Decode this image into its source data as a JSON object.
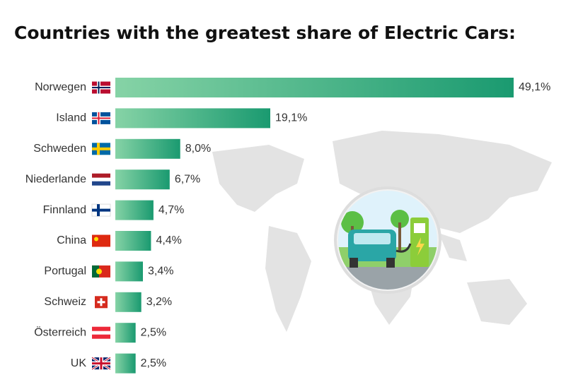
{
  "chart_data": {
    "type": "bar",
    "orientation": "horizontal",
    "title": "Countries with the greatest share of Electric Cars:",
    "categories": [
      "Norwegen",
      "Island",
      "Schweden",
      "Niederlande",
      "Finnland",
      "China",
      "Portugal",
      "Schweiz",
      "Österreich",
      "UK"
    ],
    "values": [
      49.1,
      19.1,
      8.0,
      6.7,
      4.7,
      4.4,
      3.4,
      3.2,
      2.5,
      2.5
    ],
    "value_labels": [
      "49,1%",
      "19,1%",
      "8,0%",
      "6,7%",
      "4,7%",
      "4,4%",
      "3,4%",
      "3,2%",
      "2,5%",
      "2,5%"
    ],
    "color": "#1a9a70"
  }
}
